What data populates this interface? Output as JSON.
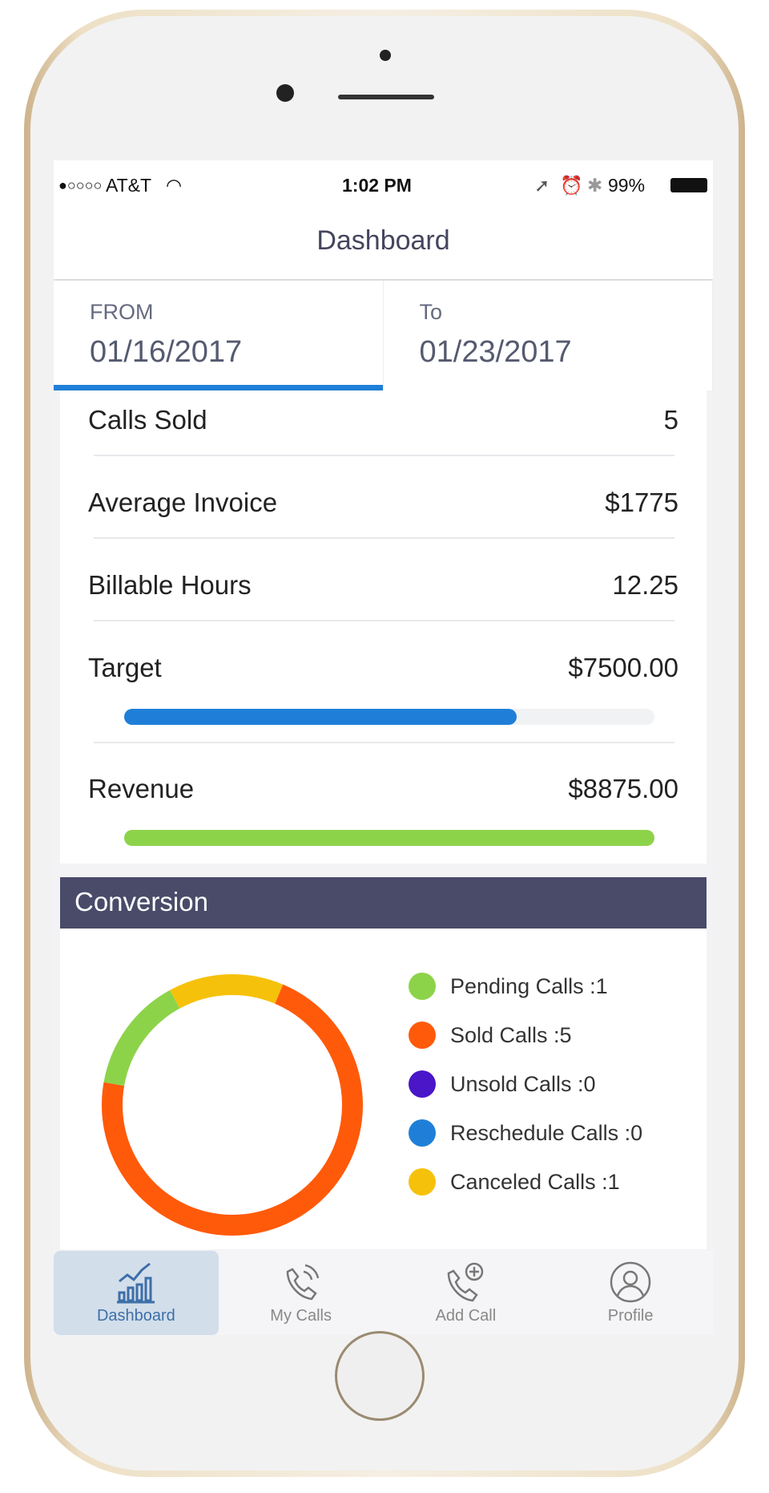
{
  "status": {
    "signal": "●○○○○",
    "carrier": "AT&T",
    "time": "1:02 PM",
    "battery": "99%"
  },
  "header": {
    "title": "Dashboard"
  },
  "dates": {
    "from_label": "FROM",
    "from_value": "01/16/2017",
    "to_label": "To",
    "to_value": "01/23/2017"
  },
  "stats": [
    {
      "label": "Calls Sold",
      "value": "5"
    },
    {
      "label": "Average Invoice",
      "value": "$1775"
    },
    {
      "label": "Billable Hours",
      "value": "12.25"
    },
    {
      "label": "Target",
      "value": "$7500.00",
      "progress": 0.74,
      "color": "#1f7fd8"
    },
    {
      "label": "Revenue",
      "value": "$8875.00",
      "progress": 1.0,
      "color": "#8dd34a"
    }
  ],
  "conversion": {
    "title": "Conversion",
    "legend": [
      {
        "label": "Pending Calls :1",
        "count": 1,
        "color": "#8dd34a"
      },
      {
        "label": "Sold Calls :5",
        "count": 5,
        "color": "#ff5a0a"
      },
      {
        "label": "Unsold Calls :0",
        "count": 0,
        "color": "#4a16c8"
      },
      {
        "label": "Reschedule Calls :0",
        "count": 0,
        "color": "#1f7fd8"
      },
      {
        "label": "Canceled Calls :1",
        "count": 1,
        "color": "#f6c10a"
      }
    ]
  },
  "tabs": [
    {
      "label": "Dashboard",
      "icon": "chart-icon"
    },
    {
      "label": "My Calls",
      "icon": "phone-icon"
    },
    {
      "label": "Add Call",
      "icon": "add-call-icon"
    },
    {
      "label": "Profile",
      "icon": "profile-icon"
    }
  ]
}
